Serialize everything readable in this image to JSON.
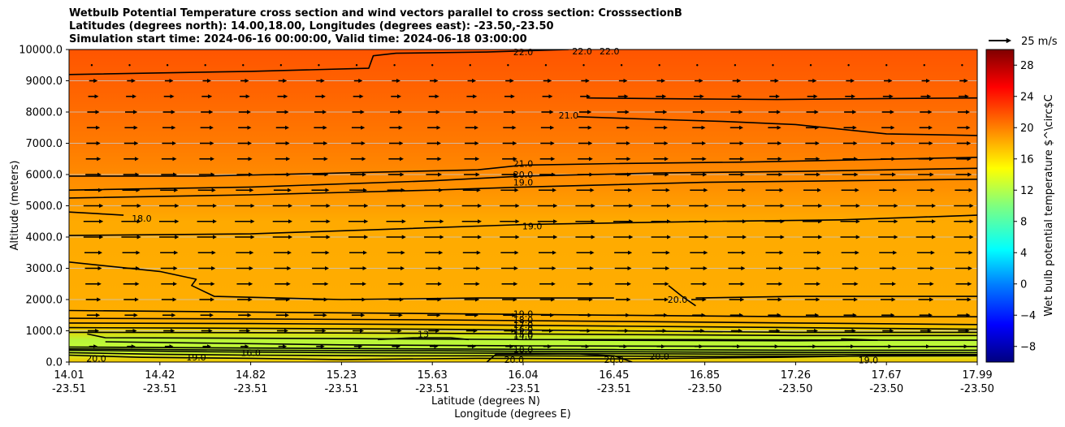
{
  "chart_data": {
    "type": "contour-cross-section",
    "title_lines": [
      "Wetbulb Potential Temperature cross section and wind vectors parallel to cross section: CrosssectionB",
      "Latitudes (degrees north): 14.00,18.00, Longitudes (degrees east): -23.50,-23.50",
      "Simulation start time: 2024-06-16 00:00:00, Valid time: 2024-06-18 03:00:00"
    ],
    "ylabel": "Altitude (meters)",
    "xlabel_lat": "Latitude (degrees N)",
    "xlabel_lon": "Longitude (degrees E)",
    "ylim": [
      0,
      10000
    ],
    "yticks": [
      "0.0",
      "1000.0",
      "2000.0",
      "3000.0",
      "4000.0",
      "5000.0",
      "6000.0",
      "7000.0",
      "8000.0",
      "9000.0",
      "10000.0"
    ],
    "ytick_values": [
      0,
      1000,
      2000,
      3000,
      4000,
      5000,
      6000,
      7000,
      8000,
      9000,
      10000
    ],
    "xticks_lat": [
      "14.01",
      "14.42",
      "14.82",
      "15.23",
      "15.63",
      "16.04",
      "16.45",
      "16.85",
      "17.26",
      "17.67",
      "17.99"
    ],
    "xticks_lon": [
      "-23.51",
      "-23.51",
      "-23.51",
      "-23.51",
      "-23.51",
      "-23.51",
      "-23.51",
      "-23.50",
      "-23.50",
      "-23.50",
      "-23.50"
    ],
    "colorbar": {
      "label": "Wet bulb potential temperature $^\\circ$C",
      "range": [
        -10,
        30
      ],
      "ticks": [
        "−8",
        "−4",
        "0",
        "4",
        "8",
        "12",
        "16",
        "20",
        "24",
        "28"
      ],
      "tick_values": [
        -8,
        -4,
        0,
        4,
        8,
        12,
        16,
        20,
        24,
        28
      ]
    },
    "quiver_key": "25 m/s",
    "contour_labels": [
      {
        "text": "22.0",
        "x": 0.5,
        "alt": 9920
      },
      {
        "text": "22.0",
        "x": 0.565,
        "alt": 9950
      },
      {
        "text": "22.0",
        "x": 0.595,
        "alt": 9950
      },
      {
        "text": "21.0",
        "x": 0.55,
        "alt": 7900
      },
      {
        "text": "21.0",
        "x": 0.5,
        "alt": 6350
      },
      {
        "text": "20.0",
        "x": 0.5,
        "alt": 6000
      },
      {
        "text": "19.0",
        "x": 0.5,
        "alt": 5750
      },
      {
        "text": "18.0",
        "x": 0.08,
        "alt": 4600
      },
      {
        "text": "19.0",
        "x": 0.51,
        "alt": 4350
      },
      {
        "text": "20.0",
        "x": 0.67,
        "alt": 2000
      },
      {
        "text": "19.0",
        "x": 0.5,
        "alt": 1550
      },
      {
        "text": "18.0",
        "x": 0.5,
        "alt": 1350
      },
      {
        "text": "17.0",
        "x": 0.5,
        "alt": 1200
      },
      {
        "text": "16.0",
        "x": 0.5,
        "alt": 1050
      },
      {
        "text": "15.0",
        "x": 0.5,
        "alt": 900
      },
      {
        "text": "14.0",
        "x": 0.5,
        "alt": 850
      },
      {
        "text": "13",
        "x": 0.39,
        "alt": 900
      },
      {
        "text": "16.0",
        "x": 0.2,
        "alt": 300
      },
      {
        "text": "20.0",
        "x": 0.03,
        "alt": 120
      },
      {
        "text": "19.0",
        "x": 0.14,
        "alt": 150
      },
      {
        "text": "18.0",
        "x": 0.5,
        "alt": 400
      },
      {
        "text": "20.0",
        "x": 0.49,
        "alt": 80
      },
      {
        "text": "20.0",
        "x": 0.6,
        "alt": 80
      },
      {
        "text": "20.0",
        "x": 0.65,
        "alt": 180
      },
      {
        "text": "19.0",
        "x": 0.88,
        "alt": 60
      }
    ],
    "contour_lines": [
      {
        "level": 22.0,
        "points": [
          [
            0,
            9200
          ],
          [
            0.2,
            9300
          ],
          [
            0.33,
            9400
          ],
          [
            0.335,
            9800
          ],
          [
            0.36,
            9880
          ],
          [
            0.46,
            9920
          ],
          [
            0.55,
            10000
          ]
        ]
      },
      {
        "level": 21.0,
        "points": [
          [
            0.57,
            8450
          ],
          [
            0.68,
            8420
          ],
          [
            0.78,
            8400
          ],
          [
            0.9,
            8430
          ],
          [
            1.0,
            8450
          ]
        ]
      },
      {
        "level": 21.0,
        "points": [
          [
            0.56,
            7850
          ],
          [
            0.63,
            7780
          ],
          [
            0.72,
            7700
          ],
          [
            0.8,
            7600
          ],
          [
            0.9,
            7300
          ],
          [
            1.0,
            7250
          ]
        ]
      },
      {
        "level": 21.0,
        "points": [
          [
            0,
            5950
          ],
          [
            0.15,
            5950
          ],
          [
            0.3,
            6050
          ],
          [
            0.45,
            6150
          ],
          [
            0.5,
            6300
          ],
          [
            0.6,
            6350
          ],
          [
            0.75,
            6400
          ],
          [
            1.0,
            6550
          ]
        ]
      },
      {
        "level": 20.0,
        "points": [
          [
            0,
            5500
          ],
          [
            0.2,
            5600
          ],
          [
            0.4,
            5800
          ],
          [
            0.5,
            5950
          ],
          [
            0.65,
            6050
          ],
          [
            0.8,
            6100
          ],
          [
            1.0,
            6200
          ]
        ]
      },
      {
        "level": 19.0,
        "points": [
          [
            0,
            5250
          ],
          [
            0.2,
            5350
          ],
          [
            0.4,
            5500
          ],
          [
            0.5,
            5600
          ],
          [
            0.7,
            5750
          ],
          [
            0.85,
            5800
          ],
          [
            1.0,
            5850
          ]
        ]
      },
      {
        "level": 18.0,
        "points": [
          [
            0,
            4800
          ],
          [
            0.03,
            4750
          ],
          [
            0.06,
            4700
          ]
        ]
      },
      {
        "level": 19.0,
        "points": [
          [
            0,
            4050
          ],
          [
            0.2,
            4100
          ],
          [
            0.35,
            4250
          ],
          [
            0.5,
            4400
          ],
          [
            0.7,
            4500
          ],
          [
            0.85,
            4550
          ],
          [
            1.0,
            4700
          ]
        ]
      },
      {
        "level": 18.0,
        "points": [
          [
            0,
            3200
          ],
          [
            0.1,
            2900
          ],
          [
            0.14,
            2650
          ],
          [
            0.135,
            2450
          ],
          [
            0.16,
            2100
          ],
          [
            0.3,
            2000
          ],
          [
            0.45,
            2050
          ],
          [
            0.6,
            2050
          ]
        ]
      },
      {
        "level": 20.0,
        "points": [
          [
            0.66,
            2450
          ],
          [
            0.675,
            2100
          ],
          [
            0.69,
            1800
          ]
        ]
      },
      {
        "level": 20.0,
        "points": [
          [
            0.69,
            2050
          ],
          [
            0.8,
            2100
          ],
          [
            1.0,
            2100
          ]
        ]
      },
      {
        "level": 19.0,
        "points": [
          [
            0,
            1650
          ],
          [
            0.2,
            1600
          ],
          [
            0.4,
            1550
          ],
          [
            0.6,
            1500
          ],
          [
            0.8,
            1450
          ],
          [
            1.0,
            1450
          ]
        ]
      },
      {
        "level": 18.0,
        "points": [
          [
            0,
            1400
          ],
          [
            0.2,
            1380
          ],
          [
            0.4,
            1350
          ],
          [
            0.6,
            1300
          ],
          [
            0.8,
            1250
          ],
          [
            1.0,
            1200
          ]
        ]
      },
      {
        "level": 17.0,
        "points": [
          [
            0,
            1250
          ],
          [
            0.2,
            1230
          ],
          [
            0.4,
            1200
          ],
          [
            0.6,
            1150
          ],
          [
            0.8,
            1100
          ],
          [
            1.0,
            1050
          ]
        ]
      },
      {
        "level": 16.0,
        "points": [
          [
            0,
            1100
          ],
          [
            0.2,
            1080
          ],
          [
            0.4,
            1050
          ],
          [
            0.6,
            1000
          ],
          [
            0.8,
            950
          ],
          [
            1.0,
            950
          ]
        ]
      },
      {
        "level": 15.0,
        "points": [
          [
            0,
            950
          ],
          [
            0.2,
            940
          ],
          [
            0.4,
            920
          ],
          [
            0.6,
            880
          ],
          [
            0.8,
            850
          ],
          [
            1.0,
            850
          ]
        ]
      },
      {
        "level": 14.0,
        "points": [
          [
            0.02,
            900
          ],
          [
            0.04,
            780
          ],
          [
            0.3,
            750
          ],
          [
            0.5,
            720
          ],
          [
            0.7,
            720
          ],
          [
            0.9,
            700
          ],
          [
            1.0,
            700
          ]
        ]
      },
      {
        "level": 13.0,
        "points": [
          [
            0.34,
            720
          ],
          [
            0.38,
            780
          ],
          [
            0.42,
            780
          ],
          [
            0.44,
            720
          ]
        ]
      },
      {
        "level": 14.0,
        "points": [
          [
            0.55,
            700
          ],
          [
            0.8,
            680
          ],
          [
            0.89,
            700
          ],
          [
            0.85,
            740
          ]
        ]
      },
      {
        "level": 15.0,
        "points": [
          [
            0.04,
            650
          ],
          [
            0.3,
            550
          ],
          [
            0.5,
            520
          ],
          [
            0.8,
            500
          ],
          [
            1.0,
            500
          ]
        ]
      },
      {
        "level": 16.0,
        "points": [
          [
            0,
            480
          ],
          [
            0.2,
            450
          ],
          [
            0.4,
            420
          ],
          [
            0.6,
            400
          ],
          [
            0.8,
            380
          ],
          [
            1.0,
            380
          ]
        ]
      },
      {
        "level": 17.0,
        "points": [
          [
            0,
            420
          ],
          [
            0.2,
            380
          ],
          [
            0.4,
            360
          ],
          [
            0.6,
            330
          ],
          [
            0.8,
            310
          ],
          [
            1.0,
            300
          ]
        ]
      },
      {
        "level": 18.0,
        "points": [
          [
            0,
            380
          ],
          [
            0.15,
            330
          ],
          [
            0.3,
            300
          ],
          [
            0.5,
            280
          ],
          [
            0.75,
            250
          ],
          [
            1.0,
            240
          ]
        ]
      },
      {
        "level": 19.0,
        "points": [
          [
            0,
            300
          ],
          [
            0.1,
            250
          ],
          [
            0.2,
            220
          ],
          [
            0.35,
            200
          ],
          [
            0.5,
            200
          ],
          [
            0.7,
            180
          ],
          [
            1.0,
            200
          ]
        ]
      },
      {
        "level": 20.0,
        "points": [
          [
            0,
            220
          ],
          [
            0.08,
            150
          ],
          [
            0.2,
            120
          ],
          [
            0.3,
            80
          ],
          [
            0.45,
            120
          ],
          [
            0.6,
            100
          ],
          [
            0.78,
            150
          ],
          [
            0.88,
            200
          ],
          [
            1.0,
            220
          ]
        ]
      },
      {
        "level": 20.0,
        "points": [
          [
            0.46,
            0
          ],
          [
            0.47,
            250
          ],
          [
            0.56,
            260
          ],
          [
            0.6,
            200
          ],
          [
            0.62,
            0
          ]
        ]
      }
    ],
    "wind_field": {
      "description": "Wind vectors parallel to cross section, mostly pointing in +x direction (southerly component along latitude). Longer arrows near 3000-5500 m, short arrows near surface and aloft.",
      "levels_alt": [
        9500,
        9000,
        8500,
        8000,
        7500,
        7000,
        6500,
        6000,
        5500,
        5000,
        4500,
        4000,
        3500,
        3000,
        2500,
        2000,
        1500,
        1000,
        500
      ],
      "columns": 24,
      "speed_by_level": [
        2,
        3,
        5,
        7,
        8,
        9,
        10,
        11,
        13,
        15,
        15,
        15,
        13,
        12,
        11,
        10,
        8,
        6,
        3
      ]
    }
  }
}
